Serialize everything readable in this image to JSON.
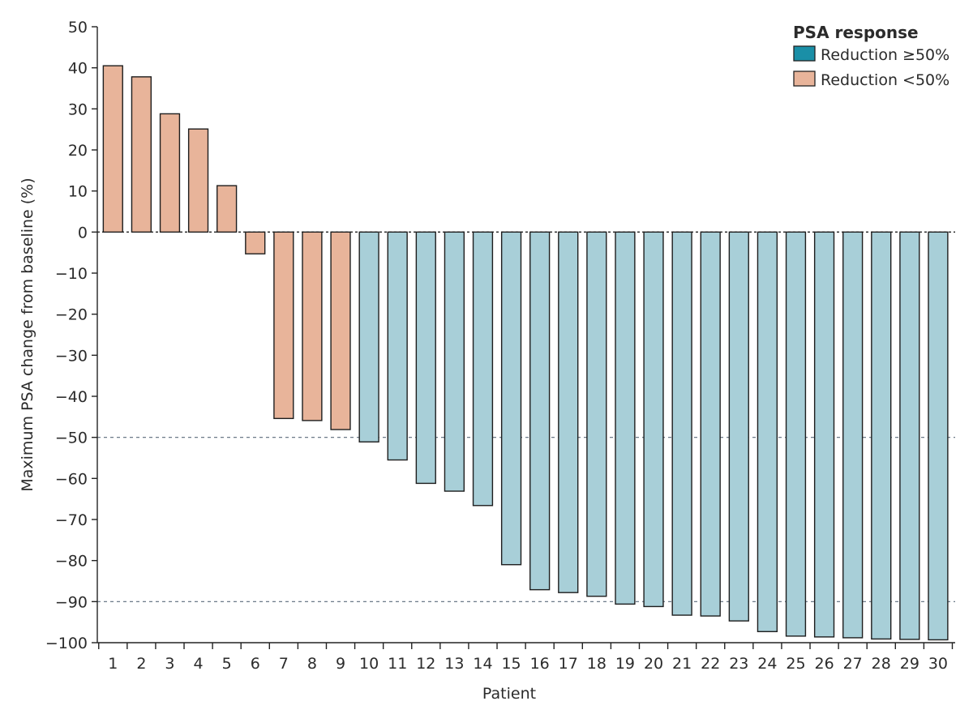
{
  "chart_data": {
    "type": "bar",
    "xlabel": "Patient",
    "ylabel": "Maximum PSA change from baseline (%)",
    "ylim": [
      -100,
      50
    ],
    "yticks": [
      50,
      40,
      30,
      20,
      10,
      0,
      -10,
      -20,
      -30,
      -40,
      -50,
      -60,
      -70,
      -80,
      -90,
      -100
    ],
    "reference_lines": [
      0,
      -50,
      -90
    ],
    "categories": [
      "1",
      "2",
      "3",
      "4",
      "5",
      "6",
      "7",
      "8",
      "9",
      "10",
      "11",
      "12",
      "13",
      "14",
      "15",
      "16",
      "17",
      "18",
      "19",
      "20",
      "21",
      "22",
      "23",
      "24",
      "25",
      "26",
      "27",
      "28",
      "29",
      "30"
    ],
    "values": [
      40.5,
      37.8,
      28.8,
      25.1,
      11.3,
      -5.3,
      -45.4,
      -45.9,
      -48.1,
      -51.1,
      -55.5,
      -61.2,
      -63.1,
      -66.6,
      -81.0,
      -87.1,
      -87.8,
      -88.7,
      -90.6,
      -91.2,
      -93.3,
      -93.5,
      -94.7,
      -97.3,
      -98.4,
      -98.6,
      -98.8,
      -99.1,
      -99.2,
      -99.3
    ],
    "series_group": [
      "lt50",
      "lt50",
      "lt50",
      "lt50",
      "lt50",
      "lt50",
      "lt50",
      "lt50",
      "lt50",
      "ge50",
      "ge50",
      "ge50",
      "ge50",
      "ge50",
      "ge50",
      "ge50",
      "ge50",
      "ge50",
      "ge50",
      "ge50",
      "ge50",
      "ge50",
      "ge50",
      "ge50",
      "ge50",
      "ge50",
      "ge50",
      "ge50",
      "ge50",
      "ge50"
    ],
    "legend": {
      "title": "PSA response",
      "position": "top-right",
      "items": [
        {
          "key": "ge50",
          "label": "Reduction ≥50%",
          "color": "#1a8fa7"
        },
        {
          "key": "lt50",
          "label": "Reduction <50%",
          "color": "#e8b49a"
        }
      ]
    },
    "bar_colors": {
      "ge50": "#a8cfd8",
      "lt50": "#e8b49a"
    },
    "grid": false
  }
}
